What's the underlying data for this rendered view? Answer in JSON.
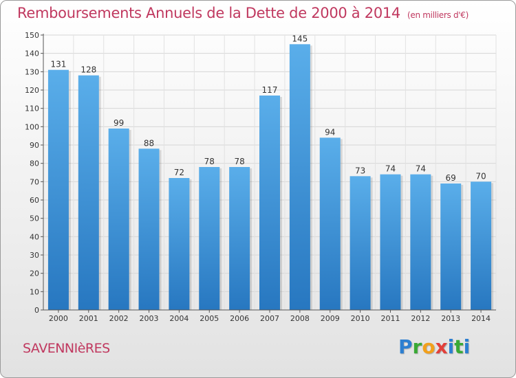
{
  "header": {
    "title": "Remboursements Annuels de la Dette de 2000 à 2014",
    "unit": "(en milliers d'€)"
  },
  "footer": {
    "commune": "SAVENNIèRES",
    "logo_letters": [
      "P",
      "r",
      "o",
      "x",
      "i",
      "t",
      "i"
    ]
  },
  "colors": {
    "accent": "#c0385f",
    "bar_top": "#5aaeea",
    "bar_bottom": "#2777c0"
  },
  "chart_data": {
    "type": "bar",
    "title": "Remboursements Annuels de la Dette de 2000 à 2014",
    "subtitle": "(en milliers d'€)",
    "categories": [
      "2000",
      "2001",
      "2002",
      "2003",
      "2004",
      "2005",
      "2006",
      "2007",
      "2008",
      "2009",
      "2010",
      "2011",
      "2012",
      "2013",
      "2014"
    ],
    "values": [
      131,
      128,
      99,
      88,
      72,
      78,
      78,
      117,
      145,
      94,
      73,
      74,
      74,
      69,
      70
    ],
    "ylim": [
      0,
      150
    ],
    "yticks": [
      0,
      10,
      20,
      30,
      40,
      50,
      60,
      70,
      80,
      90,
      100,
      110,
      120,
      130,
      140,
      150
    ],
    "grid": true,
    "legend": "none"
  }
}
